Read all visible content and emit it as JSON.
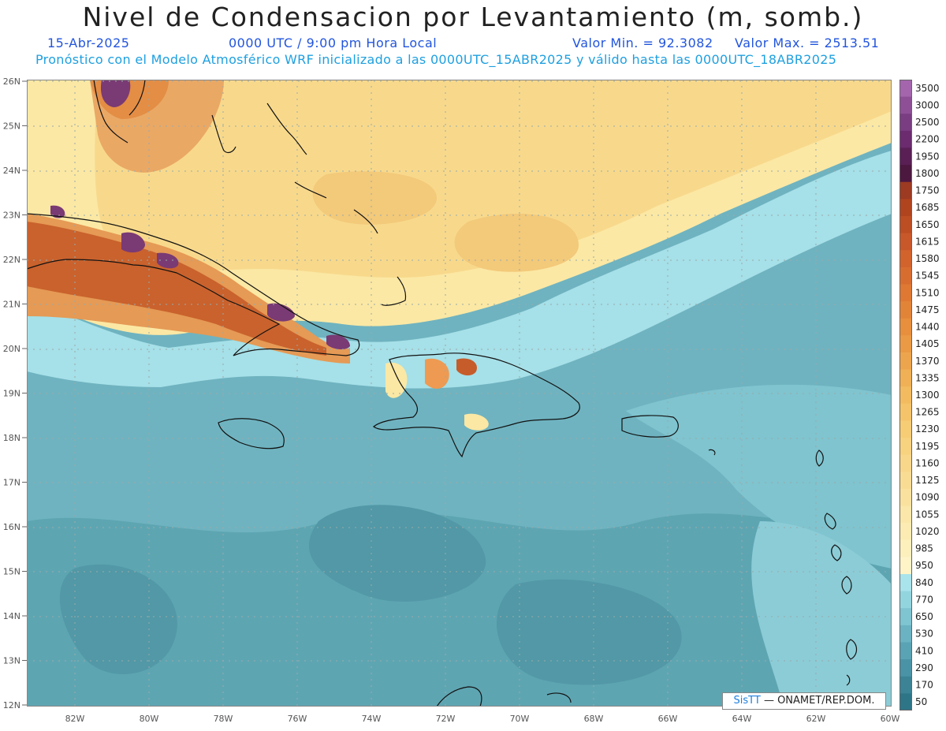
{
  "header": {
    "title": "Nivel de Condensacion por Levantamiento (m, somb.)",
    "date": "15-Abr-2025",
    "time": "0000 UTC / 9:00 pm Hora Local",
    "min_label": "Valor Min. = 92.3082",
    "max_label": "Valor Max. = 2513.51",
    "model_line": "Pronóstico con el Modelo Atmosférico WRF inicializado a las 0000UTC_15ABR2025 y válido hasta las  0000UTC_18ABR2025"
  },
  "map": {
    "lat_labels": [
      "26N",
      "25N",
      "24N",
      "23N",
      "22N",
      "21N",
      "20N",
      "19N",
      "18N",
      "17N",
      "16N",
      "15N",
      "14N",
      "13N",
      "12N"
    ],
    "lon_labels": [
      "82W",
      "80W",
      "78W",
      "76W",
      "74W",
      "72W",
      "70W",
      "68W",
      "66W",
      "64W",
      "62W",
      "60W"
    ],
    "colors": {
      "ocean_deep": "#5aa3b0",
      "ocean_mid": "#78bac6",
      "ocean_light": "#a8e2ea",
      "yellow": "#fbe9a0",
      "orange_light": "#f7d28a",
      "orange": "#ee9a52",
      "brown": "#c65c2a",
      "purple": "#7a3a74"
    }
  },
  "colorbar": {
    "levels": [
      "3500",
      "3000",
      "2500",
      "2200",
      "1950",
      "1800",
      "1750",
      "1685",
      "1650",
      "1615",
      "1580",
      "1545",
      "1510",
      "1475",
      "1440",
      "1405",
      "1370",
      "1335",
      "1300",
      "1265",
      "1230",
      "1195",
      "1160",
      "1125",
      "1090",
      "1055",
      "1020",
      "985",
      "950",
      "840",
      "770",
      "650",
      "530",
      "410",
      "290",
      "170",
      "50"
    ],
    "colors": [
      "#a565ad",
      "#8e4f96",
      "#7a3d82",
      "#6b2b6e",
      "#5a1f55",
      "#4c1840",
      "#9c3a22",
      "#b0441f",
      "#bd4d22",
      "#c8582a",
      "#d2632c",
      "#d86d30",
      "#de7833",
      "#e28438",
      "#e78f3d",
      "#ea9a44",
      "#eda54d",
      "#f0b055",
      "#f3bb5f",
      "#f5c46a",
      "#f6cc75",
      "#f7d27f",
      "#f8d78a",
      "#f9dc94",
      "#fae29e",
      "#fbe7a9",
      "#fcecb3",
      "#fdf0bd",
      "#fef4c8",
      "#a9e4ec",
      "#93d5df",
      "#7fc4d1",
      "#6bb3c2",
      "#59a3b4",
      "#4a93a6",
      "#3c8396",
      "#2e7588"
    ]
  },
  "credit": {
    "brand": "SisTT",
    "text": " — ONAMET/REP.DOM."
  }
}
